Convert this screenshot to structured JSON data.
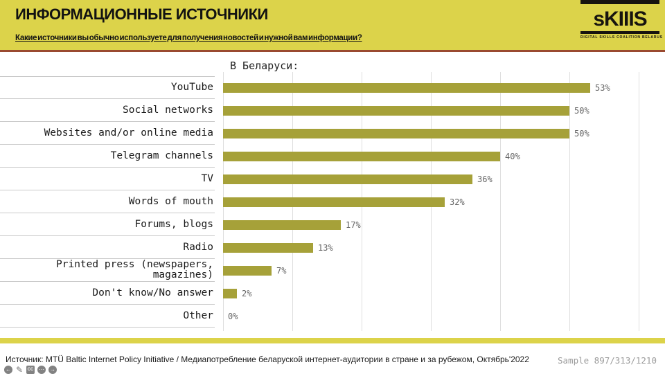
{
  "header": {
    "title": "ИНФОРМАЦИОННЫЕ ИСТОЧНИКИ",
    "subtitle": "Какие источники вы обычно используете для получения новостей и нужной вам информации?"
  },
  "logo": {
    "text": "sKIIIS",
    "tagline": "DIGITAL SKILLS COALITION BELARUS"
  },
  "chart_data": {
    "type": "bar",
    "orientation": "horizontal",
    "title": "В Беларуси:",
    "categories": [
      "YouTube",
      "Social networks",
      "Websites and/or online media",
      "Telegram channels",
      "TV",
      "Words of mouth",
      "Forums, blogs",
      "Radio",
      "Printed press (newspapers, magazines)",
      "Don't know/No answer",
      "Other"
    ],
    "values": [
      53,
      50,
      50,
      40,
      36,
      32,
      17,
      13,
      7,
      2,
      0
    ],
    "value_labels": [
      "53%",
      "50%",
      "50%",
      "40%",
      "36%",
      "32%",
      "17%",
      "13%",
      "7%",
      "2%",
      "0%"
    ],
    "xlim": [
      0,
      60
    ],
    "grid_step": 10,
    "grid": true,
    "legend": "none",
    "bar_color": "#a6a139",
    "value_label_color": "#666666"
  },
  "footer": {
    "source": "Источник: MTÜ Baltic Internet Policy Initiative / Медиапотребление беларуской интернет-аудитории в стране и за рубежом,  Октябрь'2022",
    "sample": "Sample 897/313/1210"
  },
  "controls": {
    "back": "←",
    "edit": "✎",
    "cc": "CC",
    "more": "⋯",
    "forward": "→"
  },
  "colors": {
    "header_bg": "#dcd34a",
    "header_accent_line": "#9a4a30",
    "bar": "#a6a139",
    "gridline": "#dedede",
    "row_separator": "#c9c9c9"
  }
}
